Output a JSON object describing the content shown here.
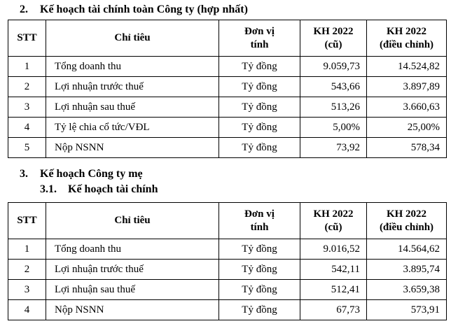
{
  "headings": {
    "consolidated": {
      "number": "2.",
      "label": "Kế hoạch tài chính toàn Công ty (hợp nhất)"
    },
    "parent": {
      "number": "3.",
      "label": "Kế hoạch Công ty mẹ"
    },
    "parent_finance": {
      "number": "3.1.",
      "label": "Kế hoạch tài chính"
    }
  },
  "table_consolidated": {
    "headers": {
      "stt": "STT",
      "indicator": "Chỉ tiêu",
      "unit": "Đơn vị\ntính",
      "kh_old": "KH 2022\n(cũ)",
      "kh_adjusted": "KH 2022\n(điều chỉnh)"
    },
    "rows": [
      {
        "stt": "1",
        "indicator": "Tổng doanh thu",
        "unit": "Tỷ đồng",
        "kh_old": "9.059,73",
        "kh_adjusted": "14.524,82"
      },
      {
        "stt": "2",
        "indicator": "Lợi nhuận trước thuế",
        "unit": "Tỷ đồng",
        "kh_old": "543,66",
        "kh_adjusted": "3.897,89"
      },
      {
        "stt": "3",
        "indicator": "Lợi nhuận sau thuế",
        "unit": "Tỷ đồng",
        "kh_old": "513,26",
        "kh_adjusted": "3.660,63"
      },
      {
        "stt": "4",
        "indicator": "Tỷ lệ chia cổ tức/VĐL",
        "unit": "Tỷ đồng",
        "kh_old": "5,00%",
        "kh_adjusted": "25,00%"
      },
      {
        "stt": "5",
        "indicator": "Nộp NSNN",
        "unit": "Tỷ đồng",
        "kh_old": "73,92",
        "kh_adjusted": "578,34"
      }
    ]
  },
  "table_parent": {
    "headers": {
      "stt": "STT",
      "indicator": "Chỉ tiêu",
      "unit": "Đơn vị\ntính",
      "kh_old": "KH 2022\n(cũ)",
      "kh_adjusted": "KH 2022\n(điều chỉnh)"
    },
    "rows": [
      {
        "stt": "1",
        "indicator": "Tổng doanh thu",
        "unit": "Tỷ đồng",
        "kh_old": "9.016,52",
        "kh_adjusted": "14.564,62"
      },
      {
        "stt": "2",
        "indicator": "Lợi nhuận trước thuế",
        "unit": "Tỷ đồng",
        "kh_old": "542,11",
        "kh_adjusted": "3.895,74"
      },
      {
        "stt": "3",
        "indicator": "Lợi nhuận sau thuế",
        "unit": "Tỷ đồng",
        "kh_old": "512,41",
        "kh_adjusted": "3.659,38"
      },
      {
        "stt": "4",
        "indicator": "Nộp NSNN",
        "unit": "Tỷ đồng",
        "kh_old": "67,73",
        "kh_adjusted": "573,91"
      }
    ]
  }
}
